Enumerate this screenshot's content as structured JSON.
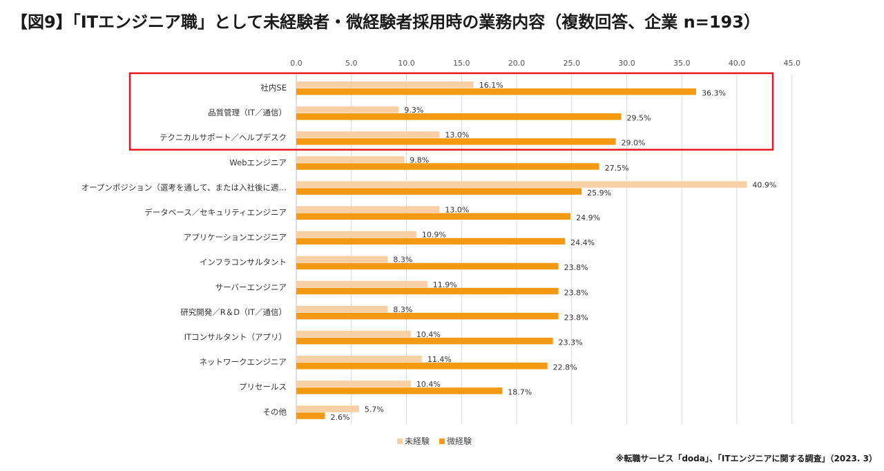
{
  "title": "【図9】「ITエンジニア職」として未経験者・微経験者採用時の業務内容（複数回答、企業 n=193）",
  "source": "※転職サービス「doda」、「ITエンジニアに関する調査」（2023. 3）",
  "colors": {
    "series1": "#f9cfa6",
    "series2": "#f39a12",
    "highlight_box": "#e8161a",
    "grid": "#d9d9d9"
  },
  "chart_data": {
    "type": "bar",
    "orientation": "horizontal",
    "title": "【図9】「ITエンジニア職」として未経験者・微経験者採用時の業務内容（複数回答、企業 n=193）",
    "xlim": [
      0,
      45
    ],
    "ticks": [
      "0.0",
      "5.0",
      "10.0",
      "15.0",
      "20.0",
      "25.0",
      "30.0",
      "35.0",
      "40.0",
      "45.0"
    ],
    "tick_values": [
      0,
      5,
      10,
      15,
      20,
      25,
      30,
      35,
      40,
      45
    ],
    "categories": [
      "社内SE",
      "品質管理（IT／通信）",
      "テクニカルサポート／ヘルプデスク",
      "Webエンジニア",
      "オープンポジション（選考を通して、または入社後に適…",
      "データベース／セキュリティエンジニア",
      "アプリケーションエンジニア",
      "インフラコンサルタント",
      "サーバーエンジニア",
      "研究開発／R＆D（IT／通信）",
      "ITコンサルタント（アプリ）",
      "ネットワークエンジニア",
      "プリセールス",
      "その他"
    ],
    "series": [
      {
        "name": "未経験",
        "values": [
          16.1,
          9.3,
          13.0,
          9.8,
          40.9,
          13.0,
          10.9,
          8.3,
          11.9,
          8.3,
          10.4,
          11.4,
          10.4,
          5.7
        ],
        "labels": [
          "16.1%",
          "9.3%",
          "13.0%",
          "9.8%",
          "40.9%",
          "13.0%",
          "10.9%",
          "8.3%",
          "11.9%",
          "8.3%",
          "10.4%",
          "11.4%",
          "10.4%",
          "5.7%"
        ]
      },
      {
        "name": "微経験",
        "values": [
          36.3,
          29.5,
          29.0,
          27.5,
          25.9,
          24.9,
          24.4,
          23.8,
          23.8,
          23.8,
          23.3,
          22.8,
          18.7,
          2.6
        ],
        "labels": [
          "36.3%",
          "29.5%",
          "29.0%",
          "27.5%",
          "25.9%",
          "24.9%",
          "24.4%",
          "23.8%",
          "23.8%",
          "23.8%",
          "23.3%",
          "22.8%",
          "18.7%",
          "2.6%"
        ]
      }
    ],
    "legend": {
      "position": "bottom"
    },
    "grid": true,
    "highlight_categories": [
      "社内SE",
      "品質管理（IT／通信）",
      "テクニカルサポート／ヘルプデスク"
    ]
  }
}
